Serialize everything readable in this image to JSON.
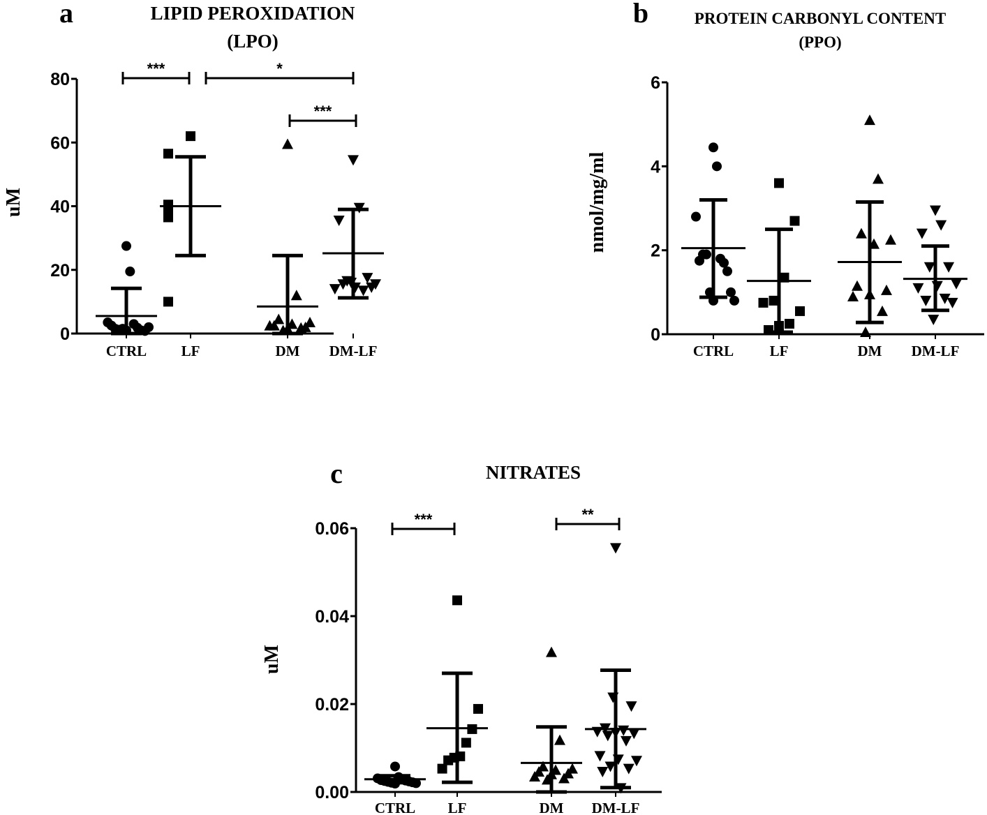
{
  "chart_data": [
    {
      "type": "scatter",
      "panel": "a",
      "title": [
        "LIPID PEROXIDATION",
        "(LPO)"
      ],
      "ylabel": "uM",
      "xlabel": "",
      "ylim": [
        0,
        80
      ],
      "yticks": [
        0,
        20,
        40,
        60,
        80
      ],
      "ytick_labels": [
        "0",
        "20",
        "40",
        "60",
        "80"
      ],
      "categories": [
        "CTRL",
        "LF",
        "DM",
        "DM-LF"
      ],
      "markers": [
        "circle",
        "square",
        "triangle-up",
        "triangle-down"
      ],
      "groups": [
        {
          "name": "CTRL",
          "mean": 5.5,
          "sd_low": 0,
          "sd_high": 14.2,
          "points": [
            27.5,
            19.5,
            3.5,
            3.0,
            2.5,
            1.8,
            1.5,
            1.0,
            1.2,
            0.8,
            1.5,
            2.0,
            1.0
          ]
        },
        {
          "name": "LF",
          "mean": 40,
          "sd_low": 24.5,
          "sd_high": 55.5,
          "points": [
            62,
            56.5,
            40,
            40.5,
            37,
            36.5,
            10
          ]
        },
        {
          "name": "DM",
          "mean": 8.5,
          "sd_low": 0,
          "sd_high": 24.5,
          "points": [
            59.5,
            12,
            4.5,
            3.5,
            3.0,
            2.5,
            2.0,
            1.5,
            2.5,
            1.8,
            1.0
          ]
        },
        {
          "name": "DM-LF",
          "mean": 25.2,
          "sd_low": 11.2,
          "sd_high": 39.0,
          "points": [
            54.5,
            39.5,
            35.5,
            17.5,
            16.5,
            15.5,
            14.5,
            14.0,
            13.5,
            15.5,
            14.5,
            16.0
          ]
        }
      ],
      "significance": [
        {
          "from": "CTRL",
          "to": "LF",
          "y": 80,
          "label": "***"
        },
        {
          "from": "LF",
          "to": "DM-LF",
          "y": 80,
          "label": "*"
        },
        {
          "from": "DM",
          "to": "DM-LF",
          "y": 67,
          "label": "***"
        }
      ]
    },
    {
      "type": "scatter",
      "panel": "b",
      "title": [
        "PROTEIN CARBONYL CONTENT",
        "(PPO)"
      ],
      "ylabel": "nmol/mg/ml",
      "xlabel": "",
      "ylim": [
        0,
        6
      ],
      "yticks": [
        0,
        2,
        4,
        6
      ],
      "ytick_labels": [
        "0",
        "2",
        "4",
        "6"
      ],
      "categories": [
        "CTRL",
        "LF",
        "DM",
        "DM-LF"
      ],
      "markers": [
        "circle",
        "square",
        "triangle-up",
        "triangle-down"
      ],
      "groups": [
        {
          "name": "CTRL",
          "mean": 2.05,
          "sd_low": 0.88,
          "sd_high": 3.2,
          "points": [
            4.45,
            4.0,
            2.8,
            1.8,
            1.75,
            1.7,
            1.9,
            1.5,
            1.9,
            1.0,
            1.0,
            0.8,
            0.8
          ]
        },
        {
          "name": "LF",
          "mean": 1.27,
          "sd_low": 0.05,
          "sd_high": 2.5,
          "points": [
            3.6,
            2.7,
            1.35,
            0.8,
            0.75,
            0.55,
            0.25,
            0.2,
            0.1
          ]
        },
        {
          "name": "DM",
          "mean": 1.72,
          "sd_low": 0.28,
          "sd_high": 3.15,
          "points": [
            5.1,
            3.7,
            2.4,
            2.25,
            2.15,
            1.15,
            1.05,
            0.95,
            0.9,
            0.55,
            0.05
          ]
        },
        {
          "name": "DM-LF",
          "mean": 1.32,
          "sd_low": 0.57,
          "sd_high": 2.1,
          "points": [
            2.95,
            2.6,
            2.4,
            1.6,
            1.6,
            1.2,
            1.15,
            1.1,
            0.85,
            0.8,
            0.75,
            0.35
          ]
        }
      ],
      "significance": []
    },
    {
      "type": "scatter",
      "panel": "c",
      "title": [
        "NITRATES"
      ],
      "ylabel": "uM",
      "xlabel": "",
      "ylim": [
        0,
        0.06
      ],
      "yticks": [
        0,
        0.02,
        0.04,
        0.06
      ],
      "ytick_labels": [
        "0.00",
        "0.02",
        "0.04",
        "0.06"
      ],
      "categories": [
        "CTRL",
        "LF",
        "DM",
        "DM-LF"
      ],
      "markers": [
        "circle",
        "square",
        "triangle-up",
        "triangle-down"
      ],
      "groups": [
        {
          "name": "CTRL",
          "mean": 0.0029,
          "sd_low": 0.0021,
          "sd_high": 0.0037,
          "points": [
            0.0058,
            0.0034,
            0.0031,
            0.0029,
            0.0027,
            0.0026,
            0.0025,
            0.0024,
            0.0023,
            0.0022,
            0.0021,
            0.002,
            0.0019
          ]
        },
        {
          "name": "LF",
          "mean": 0.0145,
          "sd_low": 0.0022,
          "sd_high": 0.027,
          "points": [
            0.0436,
            0.0189,
            0.0143,
            0.0112,
            0.0081,
            0.0078,
            0.0072,
            0.0053
          ]
        },
        {
          "name": "DM",
          "mean": 0.0066,
          "sd_low": 0.0,
          "sd_high": 0.0148,
          "points": [
            0.0318,
            0.0118,
            0.0058,
            0.0053,
            0.005,
            0.0046,
            0.0042,
            0.004,
            0.0035,
            0.0031,
            0.0028
          ]
        },
        {
          "name": "DM-LF",
          "mean": 0.0143,
          "sd_low": 0.001,
          "sd_high": 0.0277,
          "points": [
            0.0555,
            0.0215,
            0.0195,
            0.0145,
            0.014,
            0.0137,
            0.0135,
            0.0133,
            0.0128,
            0.0116,
            0.0082,
            0.0074,
            0.0071,
            0.0058,
            0.0053,
            0.0046,
            0.0009
          ]
        }
      ],
      "significance": [
        {
          "from": "CTRL",
          "to": "LF",
          "y": 0.0595,
          "label": "***"
        },
        {
          "from": "DM",
          "to": "DM-LF",
          "y": 0.0605,
          "label": "**"
        }
      ]
    }
  ]
}
